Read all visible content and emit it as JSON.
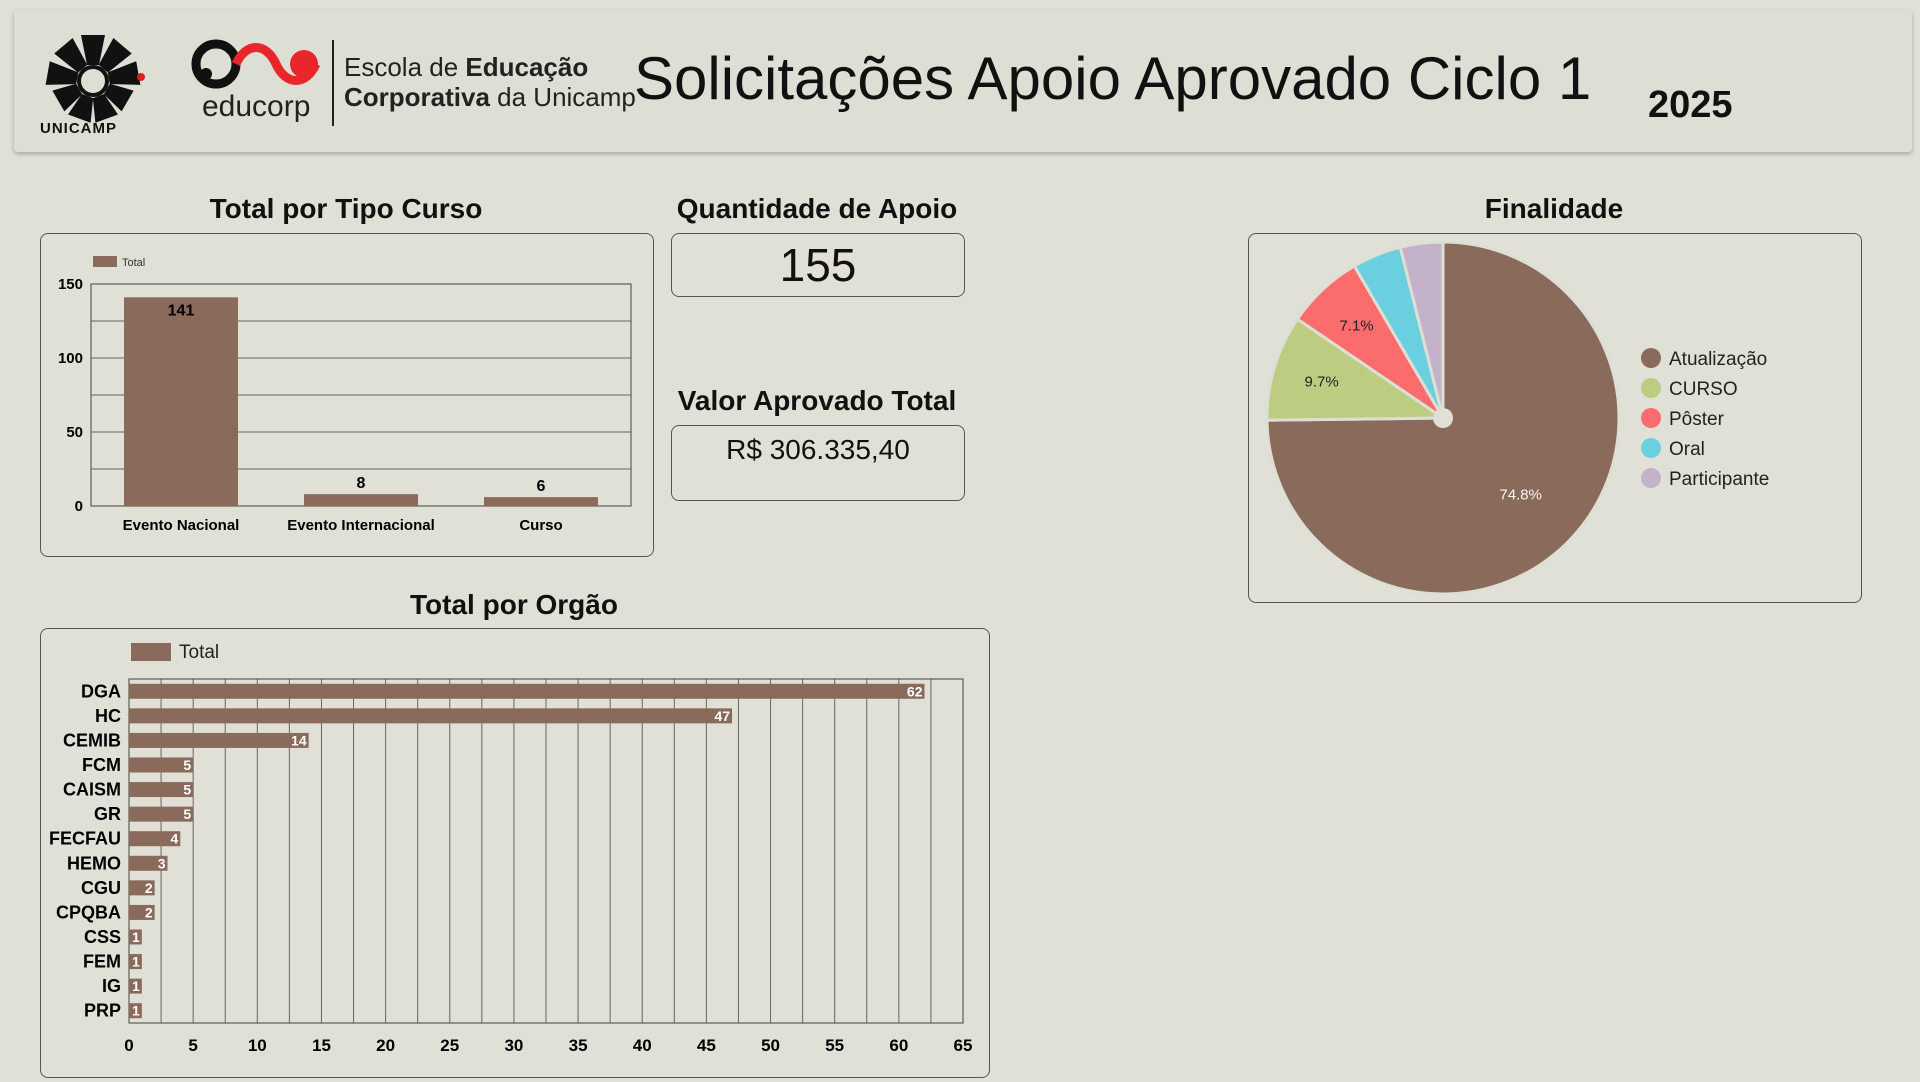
{
  "header": {
    "unicamp_text": "UNICAMP",
    "educorp_word": "educorp",
    "school_line1_a": "Escola de ",
    "school_line1_b": "Educação",
    "school_line2_a": "Corporativa",
    "school_line2_b": " da Unicamp",
    "title": "Solicitações Apoio Aprovado Ciclo 1",
    "year": "2025"
  },
  "kpis": {
    "quantidade_title": "Quantidade de Apoio",
    "quantidade_value": "155",
    "valor_title": "Valor Aprovado Total",
    "valor_value": "R$ 306.335,40"
  },
  "colors": {
    "bar": "#8a6a5a",
    "Atualização": "#8a6a5a",
    "CURSO": "#bccd82",
    "Pôster": "#fb6c6c",
    "Oral": "#6ad0df",
    "Participante": "#c3b2ca"
  },
  "chart_data": [
    {
      "type": "bar",
      "title": "Total por Tipo Curso",
      "legend": "Total",
      "categories": [
        "Evento Nacional",
        "Evento Internacional",
        "Curso"
      ],
      "values": [
        141,
        8,
        6
      ],
      "ylim": [
        0,
        150
      ],
      "yticks": [
        0,
        50,
        100,
        150
      ],
      "grid": true,
      "legend_position": "top-left"
    },
    {
      "type": "bar",
      "orientation": "horizontal",
      "title": "Total por Orgão",
      "legend": "Total",
      "categories": [
        "DGA",
        "HC",
        "CEMIB",
        "FCM",
        "CAISM",
        "GR",
        "FECFAU",
        "HEMO",
        "CGU",
        "CPQBA",
        "CSS",
        "FEM",
        "IG",
        "PRP"
      ],
      "values": [
        62,
        47,
        14,
        5,
        5,
        5,
        4,
        3,
        2,
        2,
        1,
        1,
        1,
        1
      ],
      "xlim": [
        0,
        65
      ],
      "xticks": [
        0,
        5,
        10,
        15,
        20,
        25,
        30,
        35,
        40,
        45,
        50,
        55,
        60,
        65
      ],
      "grid": true,
      "legend_position": "top-left"
    },
    {
      "type": "pie",
      "title": "Finalidade",
      "labels": [
        "Atualização",
        "CURSO",
        "Pôster",
        "Oral",
        "Participante"
      ],
      "values": [
        74.8,
        9.7,
        7.1,
        4.5,
        3.9
      ],
      "data_labels": [
        "74.8%",
        "9.7%",
        "7.1%",
        "",
        ""
      ],
      "legend_position": "right"
    }
  ]
}
